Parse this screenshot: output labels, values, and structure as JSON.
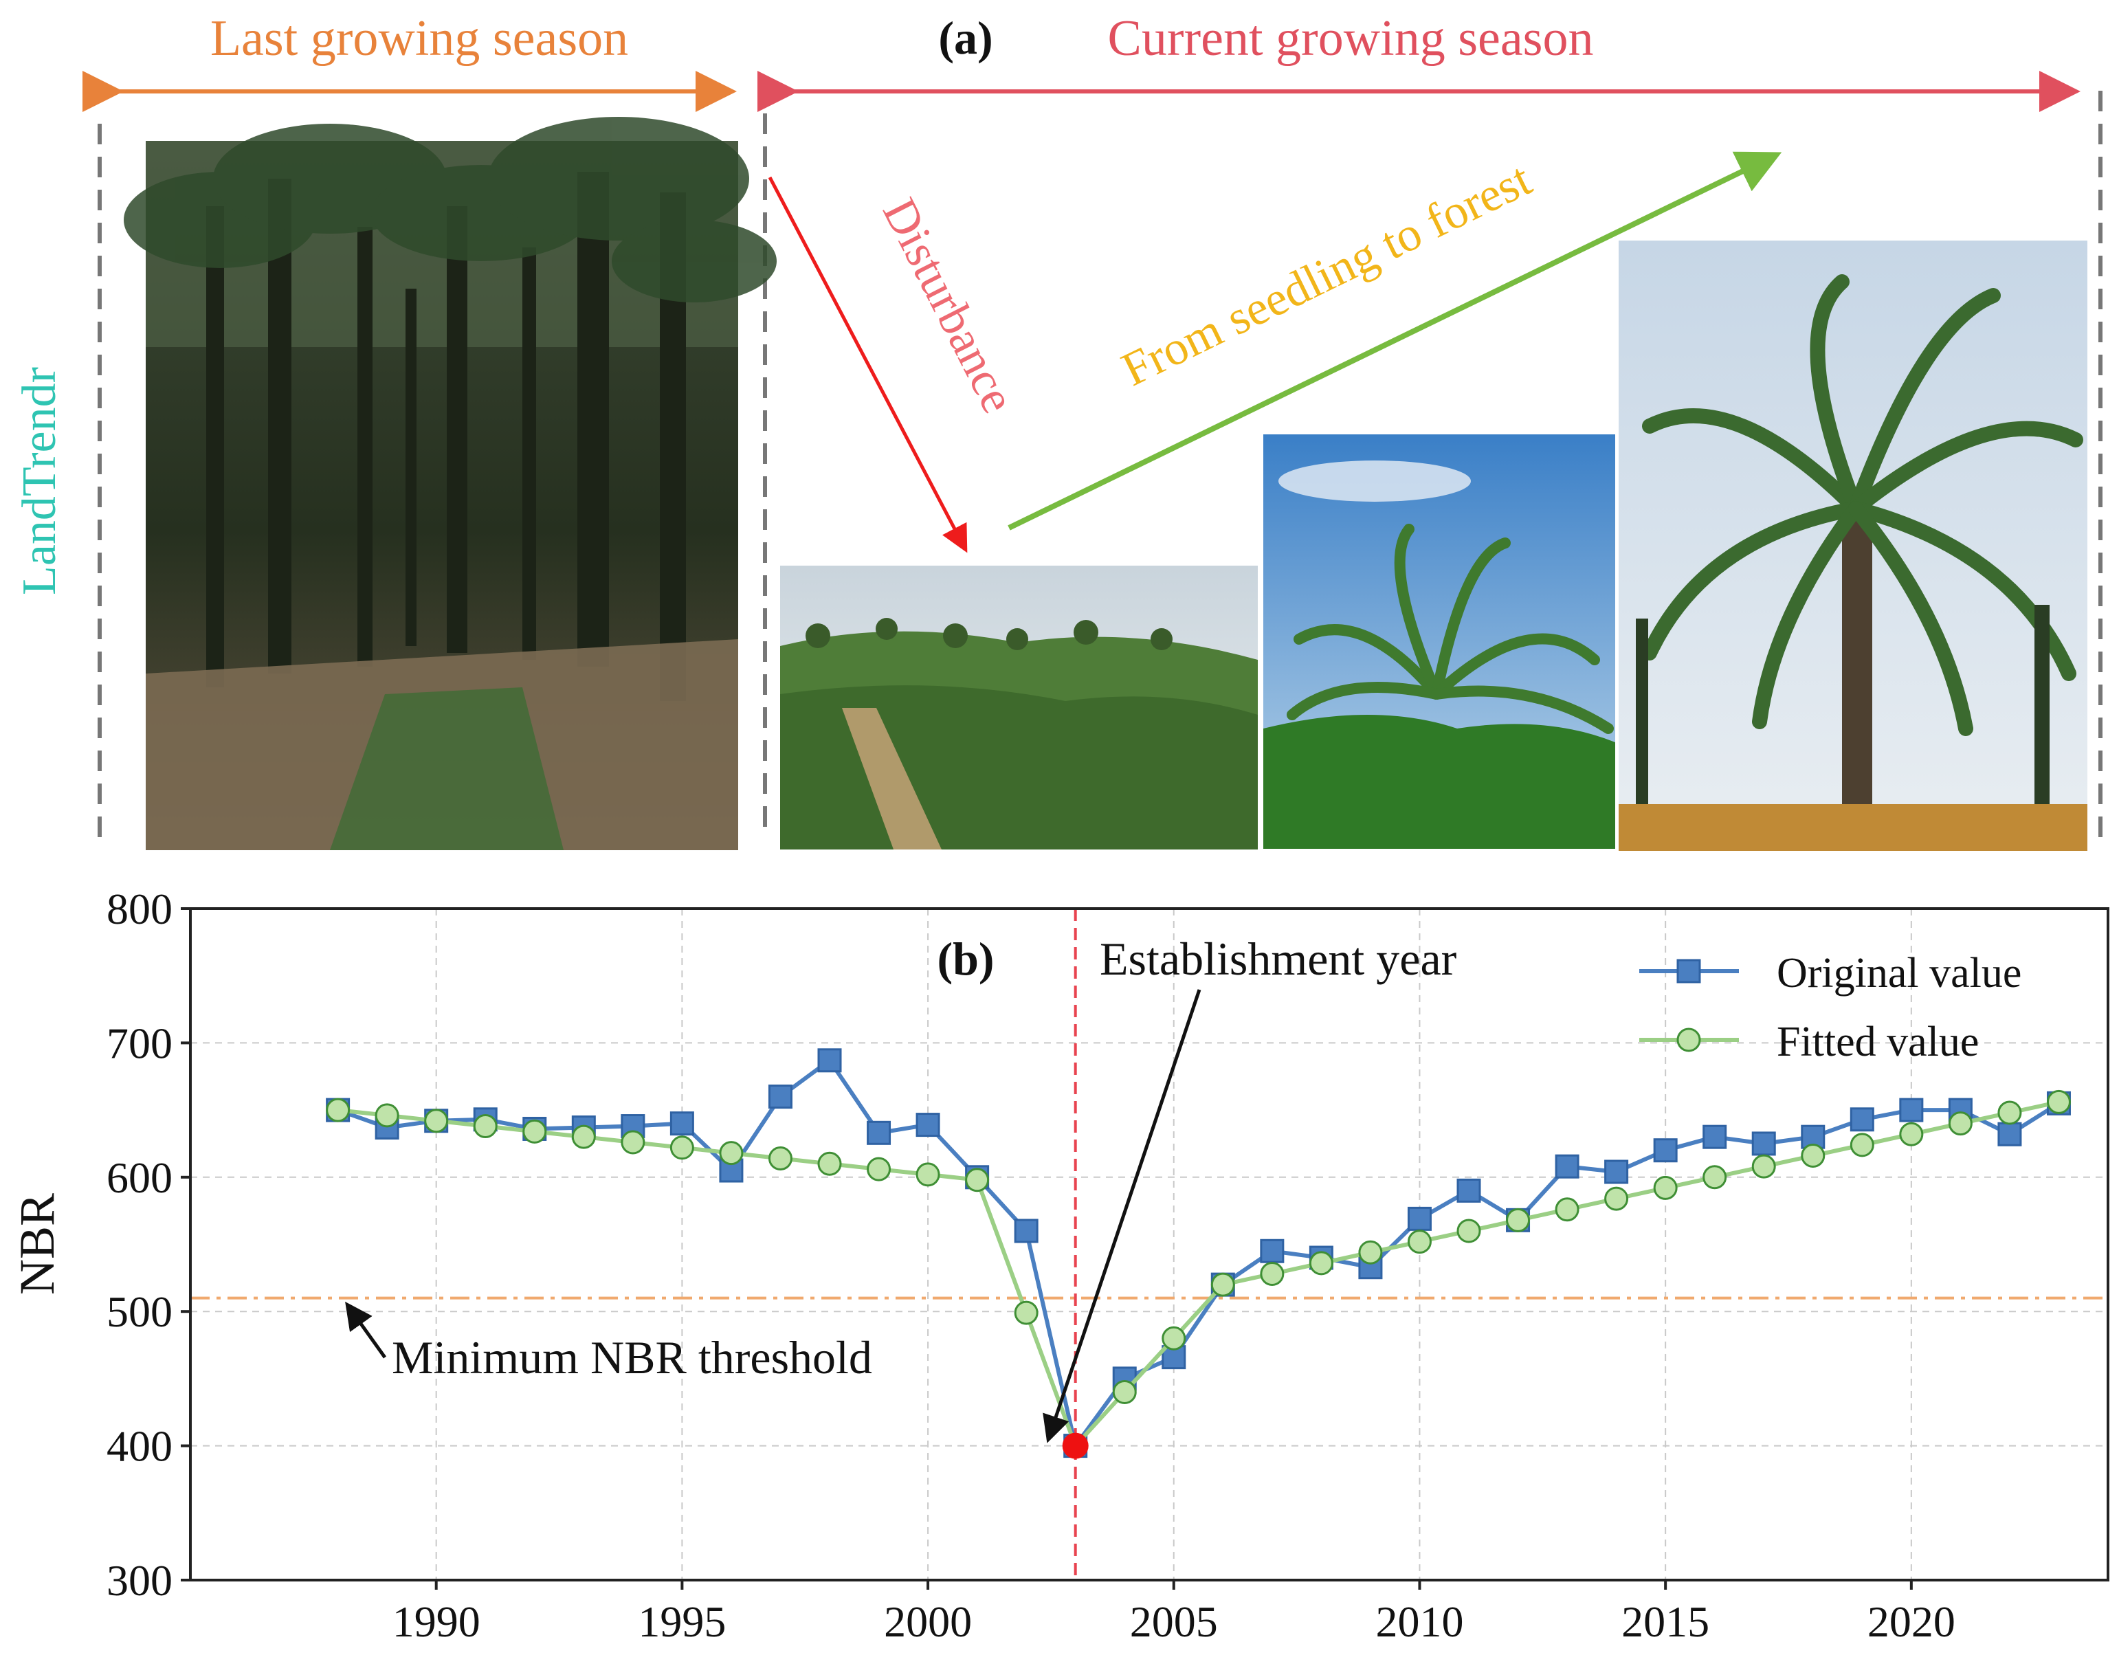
{
  "panel_a": {
    "label": "(a)",
    "last_season_label": "Last growing season",
    "current_season_label": "Current growing season",
    "disturbance_label": "Disturbance",
    "growth_label": "From seedling to forest",
    "algorithm_label": "LandTrendr",
    "colors": {
      "last_season": "#e8823a",
      "current_season": "#e0505e",
      "disturbance_arrow": "#ee1c1c",
      "disturbance_text": "#ee6a72",
      "growth_arrow": "#77bb3f",
      "growth_text": "#f2b519",
      "algorithm": "#2ec4b2",
      "dashed": "#777777"
    },
    "photos": [
      {
        "name": "mature-plantation-photo"
      },
      {
        "name": "cleared-seedling-field-photo"
      },
      {
        "name": "young-palm-photo"
      },
      {
        "name": "mature-palm-photo"
      }
    ]
  },
  "chart_data": {
    "type": "line",
    "panel_label": "(b)",
    "title": "",
    "xlabel": "",
    "ylabel": "NBR",
    "xlim": [
      1985,
      2024
    ],
    "ylim": [
      300,
      800
    ],
    "x_ticks": [
      1990,
      1995,
      2000,
      2005,
      2010,
      2015,
      2020
    ],
    "y_ticks": [
      300,
      400,
      500,
      600,
      700,
      800
    ],
    "grid": true,
    "legend_position": "top-right",
    "x": [
      1988,
      1989,
      1990,
      1991,
      1992,
      1993,
      1994,
      1995,
      1996,
      1997,
      1998,
      1999,
      2000,
      2001,
      2002,
      2003,
      2004,
      2005,
      2006,
      2007,
      2008,
      2009,
      2010,
      2011,
      2012,
      2013,
      2014,
      2015,
      2016,
      2017,
      2018,
      2019,
      2020,
      2021,
      2022,
      2023
    ],
    "series": [
      {
        "name": "Original value",
        "color": "#4a7fc1",
        "marker": "square",
        "values": [
          650,
          637,
          642,
          643,
          636,
          637,
          638,
          640,
          605,
          660,
          687,
          633,
          639,
          600,
          560,
          400,
          450,
          466,
          520,
          545,
          540,
          533,
          569,
          590,
          568,
          608,
          604,
          620,
          630,
          625,
          630,
          643,
          650,
          650,
          632,
          655
        ]
      },
      {
        "name": "Fitted value",
        "color": "#9bcf85",
        "marker": "circle",
        "values": [
          650,
          646,
          642,
          638,
          634,
          630,
          626,
          622,
          618,
          614,
          610,
          606,
          602,
          598,
          499,
          400,
          440,
          480,
          520,
          528,
          536,
          544,
          552,
          560,
          568,
          576,
          584,
          592,
          600,
          608,
          616,
          624,
          632,
          640,
          648,
          656
        ]
      }
    ],
    "threshold": {
      "label": "Minimum NBR threshold",
      "value": 510,
      "color": "#f0a96e"
    },
    "establishment": {
      "label": "Establishment year",
      "year": 2003,
      "value": 400,
      "line_color": "#e8434f",
      "point_color": "#ee1111"
    }
  }
}
